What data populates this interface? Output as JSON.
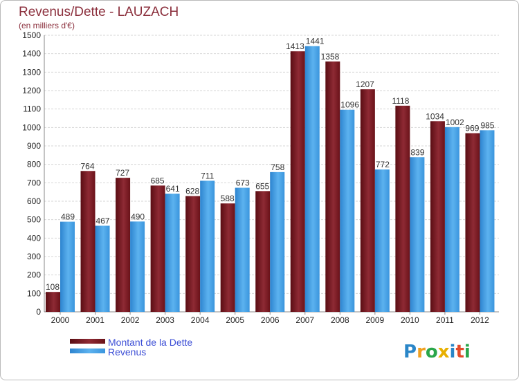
{
  "chart_data": {
    "type": "bar",
    "title": "Revenus/Dette - LAUZACH",
    "subtitle": "(en milliers d'€)",
    "xlabel": "",
    "ylabel": "",
    "ylim": [
      0,
      1500
    ],
    "yticks": [
      0,
      100,
      200,
      300,
      400,
      500,
      600,
      700,
      800,
      900,
      1000,
      1100,
      1200,
      1300,
      1400,
      1500
    ],
    "grid": true,
    "categories": [
      "2000",
      "2001",
      "2002",
      "2003",
      "2004",
      "2005",
      "2006",
      "2007",
      "2008",
      "2009",
      "2010",
      "2011",
      "2012"
    ],
    "series": [
      {
        "name": "Montant de la Dette",
        "color": "#7a1a22",
        "values": [
          108,
          764,
          727,
          685,
          628,
          588,
          655,
          1413,
          1358,
          1207,
          1118,
          1034,
          969
        ]
      },
      {
        "name": "Revenus",
        "color": "#3d97de",
        "values": [
          489,
          467,
          490,
          641,
          711,
          673,
          758,
          1441,
          1096,
          772,
          839,
          1002,
          985
        ]
      }
    ],
    "legend_position": "bottom-left"
  },
  "logo": {
    "letters": [
      "P",
      "r",
      "o",
      "x",
      "i",
      "t",
      "i"
    ]
  }
}
